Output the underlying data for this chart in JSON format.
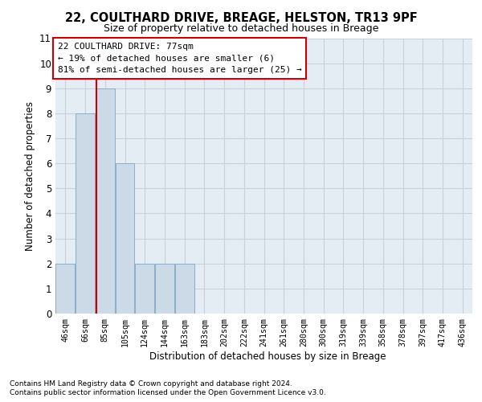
{
  "title1": "22, COULTHARD DRIVE, BREAGE, HELSTON, TR13 9PF",
  "title2": "Size of property relative to detached houses in Breage",
  "xlabel": "Distribution of detached houses by size in Breage",
  "ylabel": "Number of detached properties",
  "footnote1": "Contains HM Land Registry data © Crown copyright and database right 2024.",
  "footnote2": "Contains public sector information licensed under the Open Government Licence v3.0.",
  "bin_labels": [
    "46sqm",
    "66sqm",
    "85sqm",
    "105sqm",
    "124sqm",
    "144sqm",
    "163sqm",
    "183sqm",
    "202sqm",
    "222sqm",
    "241sqm",
    "261sqm",
    "280sqm",
    "300sqm",
    "319sqm",
    "339sqm",
    "358sqm",
    "378sqm",
    "397sqm",
    "417sqm",
    "436sqm"
  ],
  "bar_values": [
    2,
    8,
    9,
    6,
    2,
    2,
    2,
    0,
    0,
    0,
    0,
    0,
    0,
    0,
    0,
    0,
    0,
    0,
    0,
    0,
    0
  ],
  "bar_color": "#ccdae8",
  "bar_edge_color": "#89aec8",
  "grid_color": "#c8d0dc",
  "background_color": "#e4ecf4",
  "property_line_x": 1.58,
  "property_line_color": "#cc0000",
  "annotation_text": "22 COULTHARD DRIVE: 77sqm\n← 19% of detached houses are smaller (6)\n81% of semi-detached houses are larger (25) →",
  "annotation_box_color": "#cc0000",
  "ylim": [
    0,
    11
  ],
  "yticks": [
    0,
    1,
    2,
    3,
    4,
    5,
    6,
    7,
    8,
    9,
    10,
    11
  ],
  "title1_fontsize": 10.5,
  "title2_fontsize": 9
}
